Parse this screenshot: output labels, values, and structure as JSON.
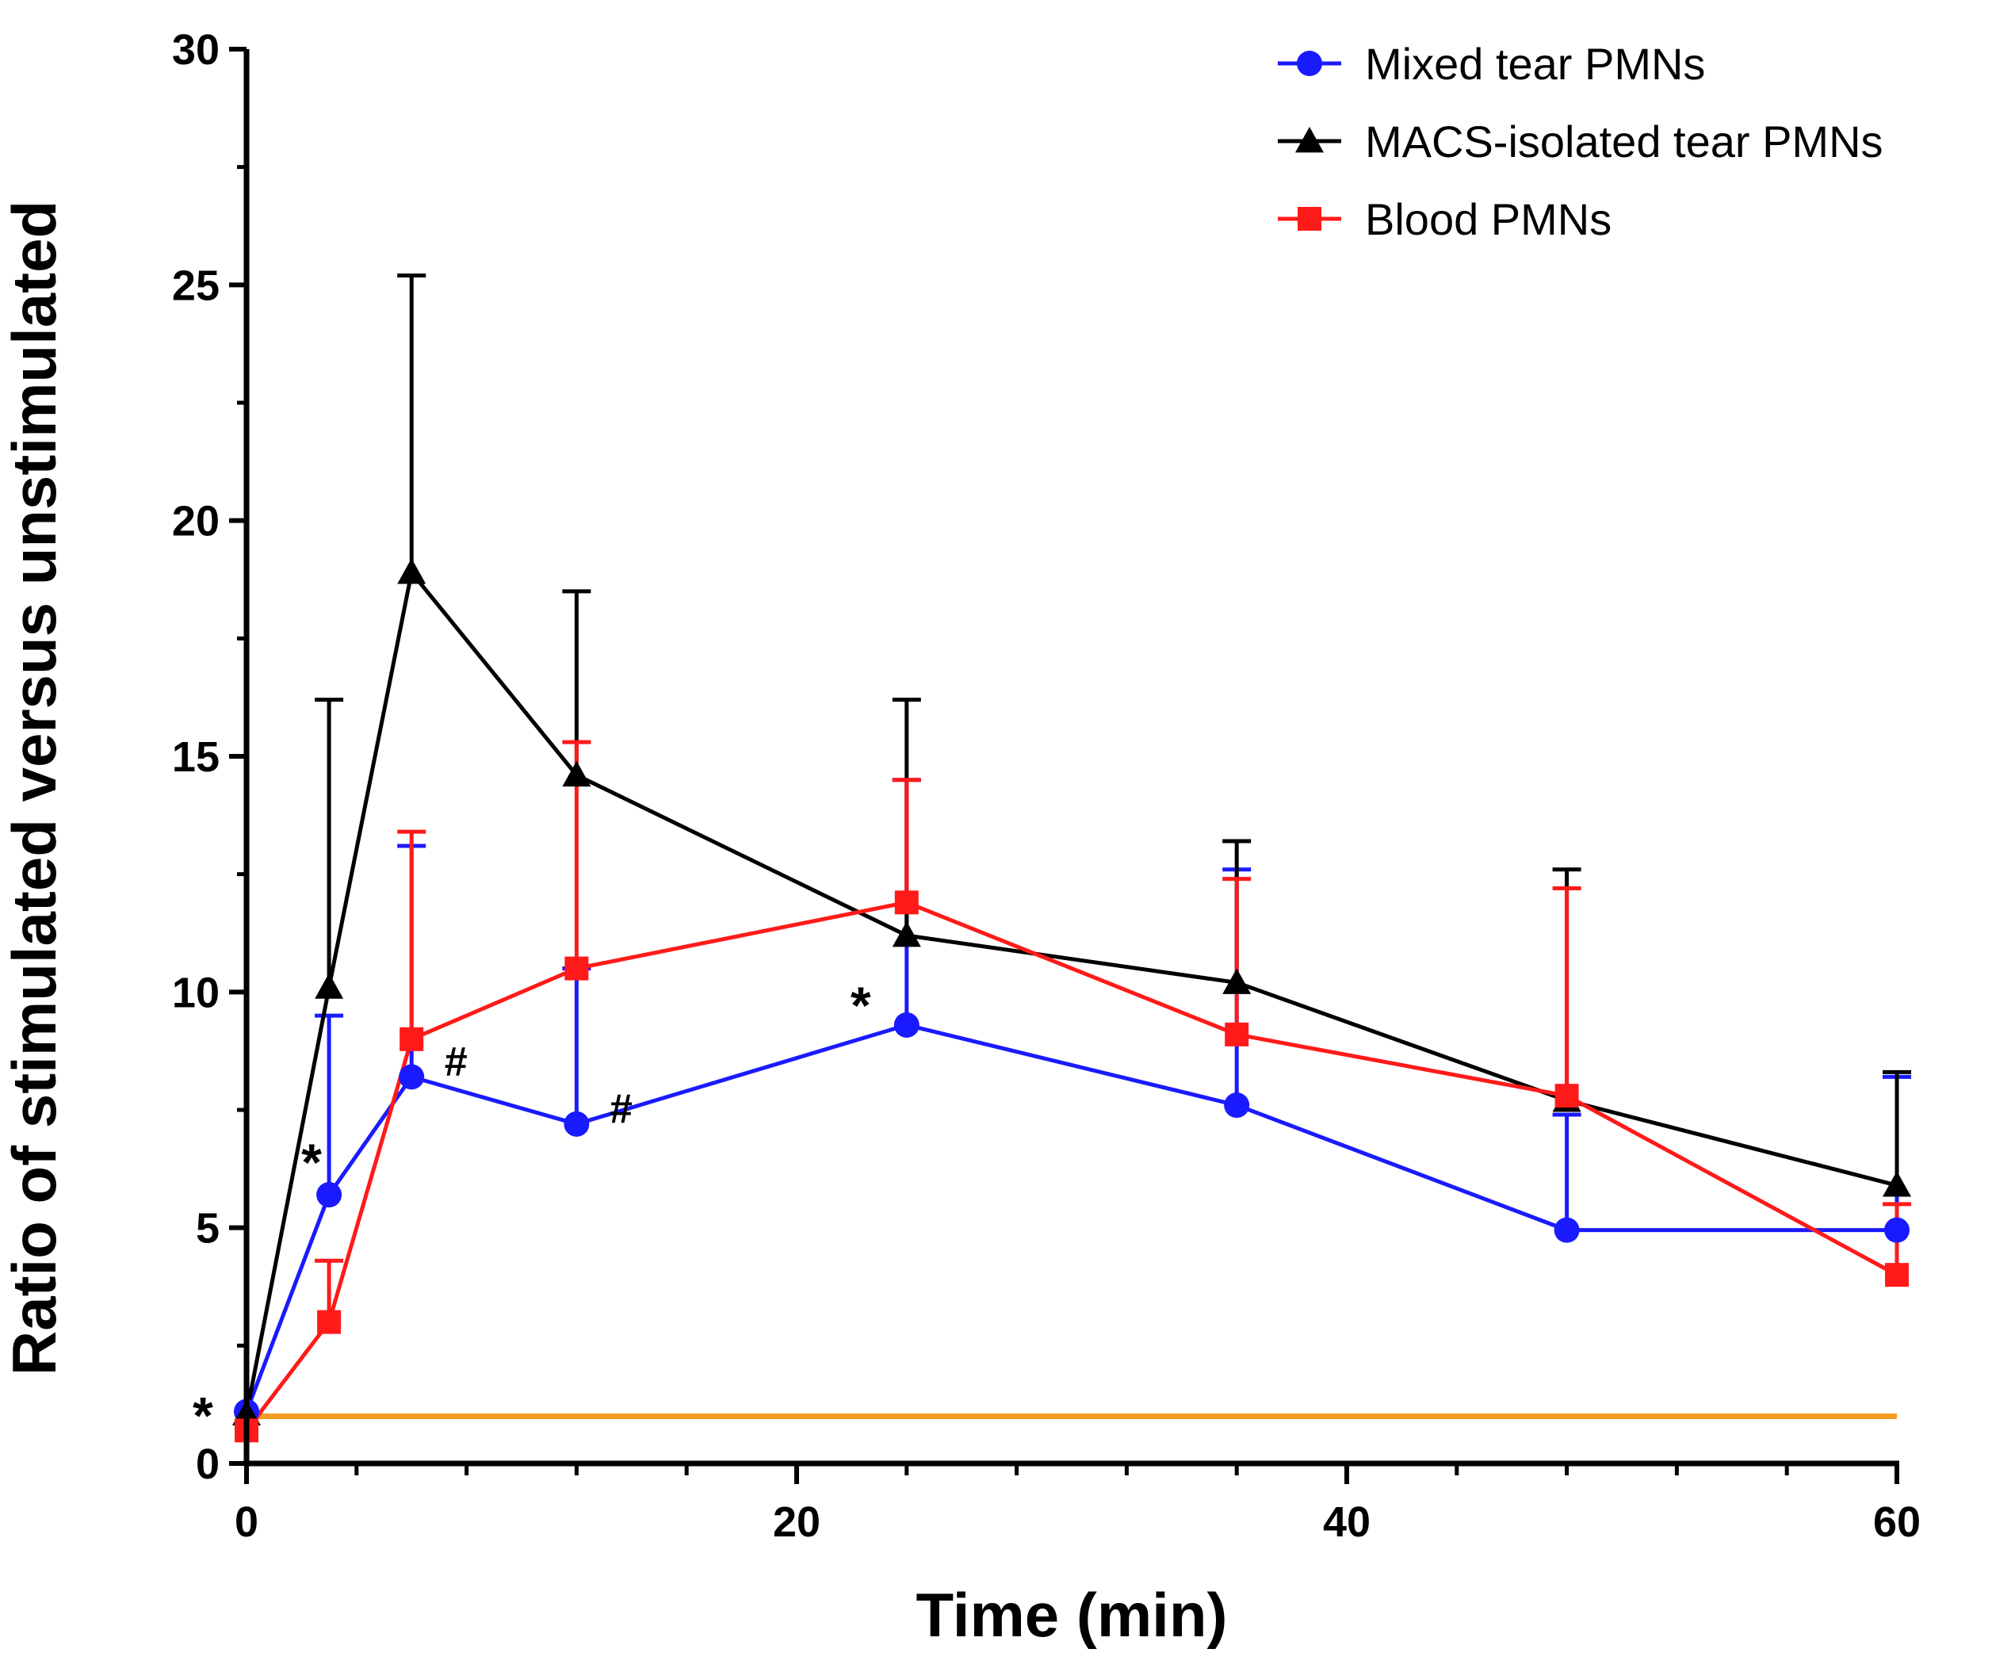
{
  "chart_data": {
    "type": "line",
    "title": "",
    "xlabel": "Time (min)",
    "ylabel": "Ratio of stimulated versus unstimulated",
    "xlim": [
      0,
      60
    ],
    "ylim": [
      0,
      30
    ],
    "x_ticks": [
      "0",
      "20",
      "40",
      "60"
    ],
    "y_ticks": [
      "0",
      "5",
      "10",
      "15",
      "20",
      "25",
      "30"
    ],
    "grid": false,
    "legend_position": "top-right",
    "reference_line": {
      "y": 1,
      "color": "#f59a23"
    },
    "series": [
      {
        "name": "Mixed tear PMNs",
        "color": "#1a1aff",
        "marker": "circle",
        "x": [
          0,
          3,
          6,
          12,
          24,
          36,
          48,
          60
        ],
        "y": [
          1.1,
          5.7,
          8.2,
          7.2,
          9.3,
          7.6,
          4.95,
          4.95
        ],
        "error_upper": [
          null,
          9.5,
          13.1,
          10.5,
          14.5,
          12.6,
          7.4,
          8.2
        ]
      },
      {
        "name": "MACS-isolated tear PMNs",
        "color": "#000000",
        "marker": "triangle",
        "x": [
          0,
          3,
          6,
          12,
          24,
          36,
          48,
          60
        ],
        "y": [
          1.05,
          10.1,
          18.9,
          14.6,
          11.2,
          10.2,
          7.7,
          5.9
        ],
        "error_upper": [
          null,
          16.2,
          25.2,
          18.5,
          16.2,
          13.2,
          12.6,
          8.3
        ]
      },
      {
        "name": "Blood PMNs",
        "color": "#ff1a1a",
        "marker": "square",
        "x": [
          0,
          3,
          6,
          12,
          24,
          36,
          48,
          60
        ],
        "y": [
          0.7,
          3.0,
          9.0,
          10.5,
          11.9,
          9.1,
          7.8,
          4.0
        ],
        "error_upper": [
          null,
          4.3,
          13.4,
          15.3,
          14.5,
          12.4,
          12.2,
          5.5
        ]
      }
    ],
    "annotations": [
      {
        "text": "*",
        "x": 0,
        "y": 1.0,
        "placement": "left"
      },
      {
        "text": "*",
        "x": 3,
        "y": 5.7,
        "placement": "upper-left"
      },
      {
        "text": "#",
        "x": 6,
        "y": 8.2,
        "placement": "upper-right"
      },
      {
        "text": "#",
        "x": 12,
        "y": 7.2,
        "placement": "upper-right"
      },
      {
        "text": "*",
        "x": 24,
        "y": 9.3,
        "placement": "upper-left"
      }
    ]
  }
}
